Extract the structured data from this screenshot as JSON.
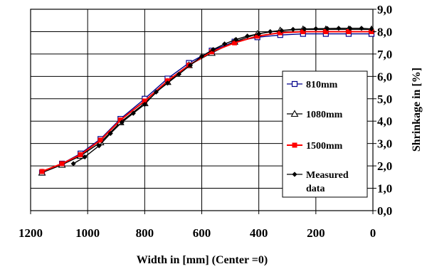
{
  "chart_data": {
    "type": "line",
    "xlabel": "Width in [mm]  (Center =0)",
    "ylabel": "Shrinkage in [%]",
    "xlim": [
      1200,
      0
    ],
    "ylim": [
      0,
      9
    ],
    "x_ticks": [
      "1200",
      "1000",
      "800",
      "600",
      "400",
      "200",
      "0"
    ],
    "y_ticks": [
      "0,0",
      "1,0",
      "2,0",
      "3,0",
      "4,0",
      "5,0",
      "6,0",
      "7,0",
      "8,0",
      "9,0"
    ],
    "grid": true,
    "y_axis_side": "right",
    "legend_position": "right",
    "series": [
      {
        "name": "810mm",
        "color": "#00008B",
        "marker": "square",
        "x": [
          1160,
          1090,
          1025,
          955,
          885,
          800,
          720,
          645,
          565,
          485,
          405,
          325,
          245,
          165,
          85,
          5
        ],
        "y": [
          1.7,
          2.1,
          2.55,
          3.2,
          4.1,
          5.0,
          5.9,
          6.6,
          7.15,
          7.55,
          7.75,
          7.85,
          7.9,
          7.9,
          7.9,
          7.9
        ]
      },
      {
        "name": "1080mm",
        "color": "#000000",
        "marker": "triangle",
        "x": [
          1160,
          1090,
          1025,
          955,
          885,
          800,
          720,
          645,
          565,
          485,
          405,
          325,
          245,
          165,
          85,
          5
        ],
        "y": [
          1.7,
          2.05,
          2.45,
          3.05,
          3.95,
          4.8,
          5.75,
          6.5,
          7.05,
          7.55,
          7.9,
          8.05,
          8.1,
          8.1,
          8.1,
          8.1
        ]
      },
      {
        "name": "1500mm",
        "color": "#FF0000",
        "marker": "square-filled",
        "x": [
          1160,
          1090,
          1025,
          955,
          885,
          800,
          720,
          645,
          565,
          485,
          405,
          325,
          245,
          165,
          85,
          5
        ],
        "y": [
          1.75,
          2.1,
          2.5,
          3.15,
          4.05,
          4.9,
          5.8,
          6.5,
          7.1,
          7.5,
          7.8,
          7.95,
          8.0,
          8.0,
          8.0,
          8.0
        ]
      },
      {
        "name": "Measured data",
        "name_lines": [
          "Measured",
          "data"
        ],
        "color": "#000000",
        "marker": "diamond-filled",
        "x": [
          1050,
          1010,
          960,
          920,
          880,
          840,
          800,
          760,
          720,
          680,
          640,
          600,
          560,
          520,
          480,
          440,
          400,
          360,
          320,
          280,
          240,
          200,
          160,
          120,
          80,
          40,
          5
        ],
        "y": [
          2.1,
          2.4,
          2.9,
          3.45,
          3.95,
          4.35,
          4.75,
          5.3,
          5.7,
          6.1,
          6.5,
          6.9,
          7.2,
          7.45,
          7.65,
          7.8,
          7.9,
          8.0,
          8.05,
          8.1,
          8.12,
          8.13,
          8.14,
          8.15,
          8.15,
          8.15,
          8.12
        ]
      }
    ]
  }
}
